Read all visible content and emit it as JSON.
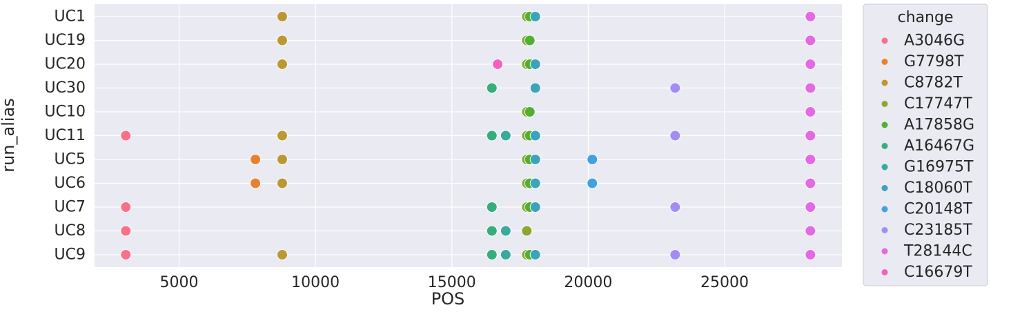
{
  "chart_data": {
    "type": "scatter",
    "xlabel": "POS",
    "ylabel": "run_alias",
    "xlim": [
      1900,
      29300
    ],
    "xticks": [
      "5000",
      "10000",
      "15000",
      "20000",
      "25000"
    ],
    "xtick_values": [
      5000,
      10000,
      15000,
      20000,
      25000
    ],
    "categories": [
      "UC1",
      "UC19",
      "UC20",
      "UC30",
      "UC10",
      "UC11",
      "UC5",
      "UC6",
      "UC7",
      "UC8",
      "UC9"
    ],
    "grid": true,
    "legend": {
      "title": "change",
      "placement": "outside-right"
    },
    "series": [
      {
        "name": "A3046G",
        "color": "#f77189",
        "points": [
          [
            3046,
            "UC11"
          ],
          [
            3046,
            "UC7"
          ],
          [
            3046,
            "UC8"
          ],
          [
            3046,
            "UC9"
          ]
        ]
      },
      {
        "name": "G7798T",
        "color": "#e6822f",
        "points": [
          [
            7798,
            "UC5"
          ],
          [
            7798,
            "UC6"
          ]
        ]
      },
      {
        "name": "C8782T",
        "color": "#bb9832",
        "points": [
          [
            8782,
            "UC1"
          ],
          [
            8782,
            "UC19"
          ],
          [
            8782,
            "UC20"
          ],
          [
            8782,
            "UC11"
          ],
          [
            8782,
            "UC5"
          ],
          [
            8782,
            "UC6"
          ],
          [
            8782,
            "UC9"
          ]
        ]
      },
      {
        "name": "C17747T",
        "color": "#8ca631",
        "points": [
          [
            17747,
            "UC1"
          ],
          [
            17747,
            "UC19"
          ],
          [
            17747,
            "UC20"
          ],
          [
            17747,
            "UC10"
          ],
          [
            17747,
            "UC11"
          ],
          [
            17747,
            "UC5"
          ],
          [
            17747,
            "UC6"
          ],
          [
            17747,
            "UC7"
          ],
          [
            17747,
            "UC8"
          ],
          [
            17747,
            "UC9"
          ]
        ]
      },
      {
        "name": "A17858G",
        "color": "#50b131",
        "points": [
          [
            17858,
            "UC1"
          ],
          [
            17858,
            "UC19"
          ],
          [
            17858,
            "UC20"
          ],
          [
            17858,
            "UC10"
          ],
          [
            17858,
            "UC11"
          ],
          [
            17858,
            "UC5"
          ],
          [
            17858,
            "UC6"
          ],
          [
            17858,
            "UC7"
          ],
          [
            17858,
            "UC9"
          ]
        ]
      },
      {
        "name": "A16467G",
        "color": "#36ae7c",
        "points": [
          [
            16467,
            "UC30"
          ],
          [
            16467,
            "UC11"
          ],
          [
            16467,
            "UC7"
          ],
          [
            16467,
            "UC8"
          ],
          [
            16467,
            "UC9"
          ]
        ]
      },
      {
        "name": "G16975T",
        "color": "#38aa9e",
        "points": [
          [
            16975,
            "UC11"
          ],
          [
            16975,
            "UC8"
          ],
          [
            16975,
            "UC9"
          ]
        ]
      },
      {
        "name": "C18060T",
        "color": "#3ba3bc",
        "points": [
          [
            18060,
            "UC1"
          ],
          [
            18060,
            "UC20"
          ],
          [
            18060,
            "UC30"
          ],
          [
            18060,
            "UC11"
          ],
          [
            18060,
            "UC5"
          ],
          [
            18060,
            "UC6"
          ],
          [
            18060,
            "UC7"
          ],
          [
            18060,
            "UC9"
          ]
        ]
      },
      {
        "name": "C20148T",
        "color": "#43a1e0",
        "points": [
          [
            20148,
            "UC5"
          ],
          [
            20148,
            "UC6"
          ]
        ]
      },
      {
        "name": "C23185T",
        "color": "#a38cf4",
        "points": [
          [
            23185,
            "UC30"
          ],
          [
            23185,
            "UC11"
          ],
          [
            23185,
            "UC7"
          ],
          [
            23185,
            "UC9"
          ]
        ]
      },
      {
        "name": "T28144C",
        "color": "#e36ae4",
        "points": [
          [
            28144,
            "UC1"
          ],
          [
            28144,
            "UC19"
          ],
          [
            28144,
            "UC20"
          ],
          [
            28144,
            "UC30"
          ],
          [
            28144,
            "UC10"
          ],
          [
            28144,
            "UC11"
          ],
          [
            28144,
            "UC5"
          ],
          [
            28144,
            "UC6"
          ],
          [
            28144,
            "UC7"
          ],
          [
            28144,
            "UC8"
          ],
          [
            28144,
            "UC9"
          ]
        ]
      },
      {
        "name": "C16679T",
        "color": "#f461c0",
        "points": [
          [
            16679,
            "UC20"
          ]
        ]
      }
    ]
  }
}
